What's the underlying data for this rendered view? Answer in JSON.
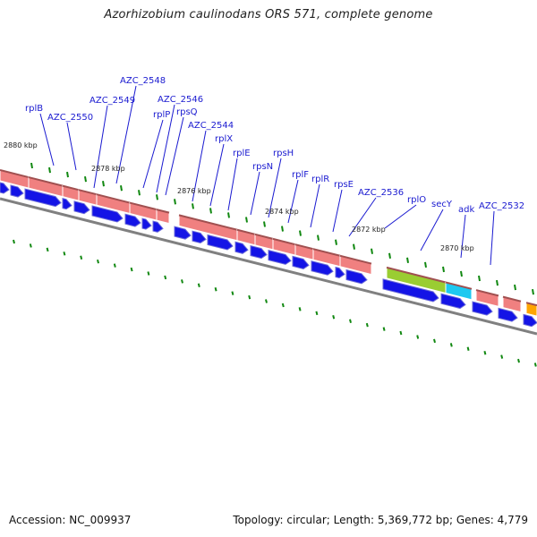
{
  "title": "Azorhizobium caulinodans ORS 571, complete genome",
  "footer": {
    "accession": "Accession: NC_009937",
    "topology": "Topology: circular; Length: 5,369,772 bp; Genes: 4,779"
  },
  "kbp_labels": [
    "2880 kbp",
    "2878 kbp",
    "2876 kbp",
    "2874 kbp",
    "2872 kbp",
    "2870 kbp"
  ],
  "gene_labels": [
    "rplB",
    "AZC_2550",
    "AZC_2549",
    "AZC_2548",
    "rplP",
    "AZC_2546",
    "rpsQ",
    "AZC_2544",
    "rplX",
    "rplE",
    "rpsN",
    "rpsH",
    "rplF",
    "rplR",
    "rpsE",
    "AZC_2536",
    "rplO",
    "secY",
    "adk",
    "AZC_2532"
  ],
  "colors": {
    "ribosomal": "#f08080",
    "secY": "#9acd32",
    "adk": "#1ec8f0",
    "other_gene": "#ffa500",
    "cds": "#1414e6",
    "backbone": "#808080",
    "tick": "#118811",
    "label": "#1a1ad0"
  }
}
